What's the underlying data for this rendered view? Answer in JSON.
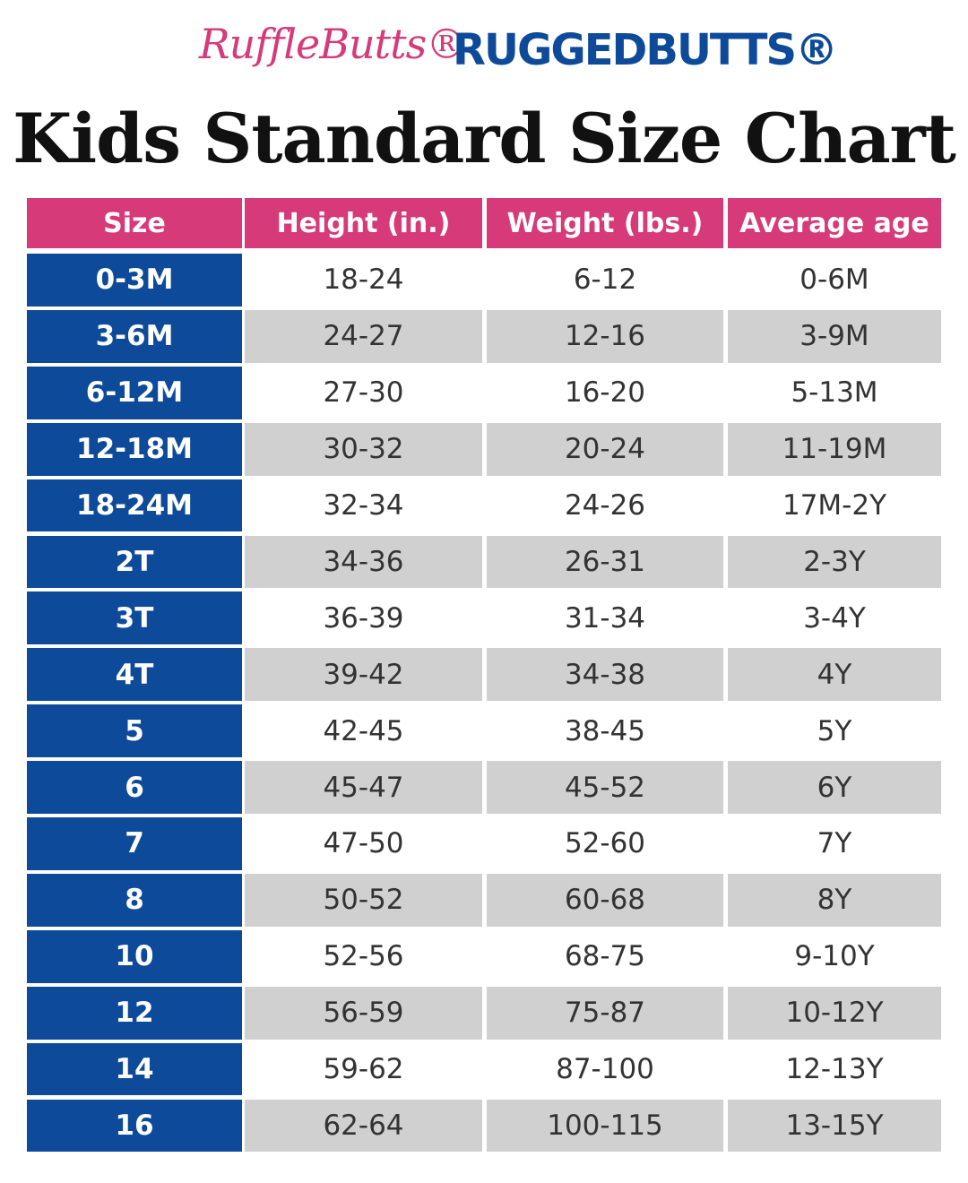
{
  "header": {
    "brands": [
      "RuffleButts®",
      "RUGGEDBUTTS®"
    ],
    "title": "Kids Standard Size Chart"
  },
  "table": {
    "columns": [
      "Size",
      "Height (in.)",
      "Weight (lbs.)",
      "Average age"
    ],
    "rows": [
      [
        "0-3M",
        "18-24",
        "6-12",
        "0-6M"
      ],
      [
        "3-6M",
        "24-27",
        "12-16",
        "3-9M"
      ],
      [
        "6-12M",
        "27-30",
        "16-20",
        "5-13M"
      ],
      [
        "12-18M",
        "30-32",
        "20-24",
        "11-19M"
      ],
      [
        "18-24M",
        "32-34",
        "24-26",
        "17M-2Y"
      ],
      [
        "2T",
        "34-36",
        "26-31",
        "2-3Y"
      ],
      [
        "3T",
        "36-39",
        "31-34",
        "3-4Y"
      ],
      [
        "4T",
        "39-42",
        "34-38",
        "4Y"
      ],
      [
        "5",
        "42-45",
        "38-45",
        "5Y"
      ],
      [
        "6",
        "45-47",
        "45-52",
        "6Y"
      ],
      [
        "7",
        "47-50",
        "52-60",
        "7Y"
      ],
      [
        "8",
        "50-52",
        "60-68",
        "8Y"
      ],
      [
        "10",
        "52-56",
        "68-75",
        "9-10Y"
      ],
      [
        "12",
        "56-59",
        "75-87",
        "10-12Y"
      ],
      [
        "14",
        "59-62",
        "87-100",
        "12-13Y"
      ],
      [
        "16",
        "62-64",
        "100-115",
        "13-15Y"
      ]
    ]
  }
}
